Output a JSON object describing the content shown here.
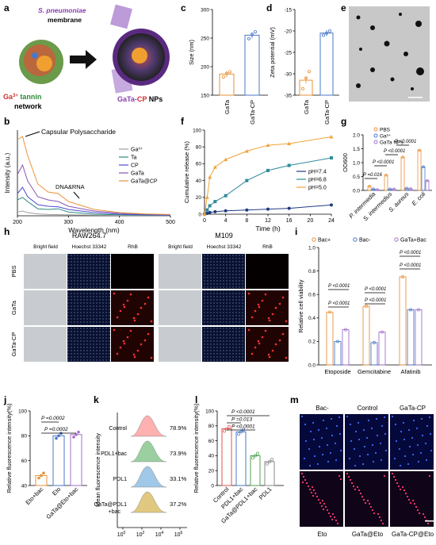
{
  "panel_letters": [
    "a",
    "b",
    "c",
    "d",
    "e",
    "f",
    "g",
    "h",
    "i",
    "j",
    "k",
    "l",
    "m"
  ],
  "panel_a": {
    "bacteria": "S. pneumoniae",
    "membrane": "membrane",
    "ga": "Ga",
    "sup": "3+",
    "tannin": " tannin",
    "network": "network",
    "np_prefix": "GaTa-",
    "np_cp": "CP",
    "np_suffix": " NPs"
  },
  "colors": {
    "gata": "#e8923a",
    "gatacp": "#4a78c8",
    "ga3": "#a0a0a0",
    "ta": "#2e8a80",
    "cp": "#4b4bd0",
    "gata_b": "#8a55b0",
    "gatacp_b": "#e8923a",
    "ph74": "#1f3b80",
    "ph68": "#2e8a9a",
    "ph50": "#f2a33a",
    "pbs": "#e8923a",
    "ga_g": "#4a78c8",
    "nps_g": "#a070c8",
    "bacplus": "#e8923a",
    "bacminus": "#4a78c8",
    "gatabac": "#a070c8"
  },
  "chart_data": [
    {
      "panel": "c",
      "type": "bar",
      "categories": [
        "GaTa",
        "GaTa-CP"
      ],
      "values": [
        187,
        255
      ],
      "points": [
        [
          182,
          188,
          191
        ],
        [
          249,
          256,
          261
        ]
      ],
      "ylabel": "Size (nm)",
      "ylim": [
        150,
        300
      ],
      "yticks": [
        150,
        200,
        250,
        300
      ]
    },
    {
      "panel": "d",
      "type": "bar",
      "categories": [
        "GaTa",
        "GaTa-CP"
      ],
      "values": [
        -31.5,
        -20.5
      ],
      "points": [
        [
          -33.5,
          -31,
          -29.5
        ],
        [
          -21,
          -20.5,
          -20
        ]
      ],
      "ylabel": "Zeta potential (mV)",
      "ylim": [
        -35,
        -15
      ],
      "yticks": [
        -35,
        -30,
        -25,
        -20,
        -15
      ]
    },
    {
      "panel": "b",
      "type": "line",
      "xlabel": "Wavelength (nm)",
      "ylabel": "Intensity (a.u.)",
      "xlim": [
        200,
        500
      ],
      "xticks": [
        200,
        300,
        400,
        500
      ],
      "series": [
        {
          "name": "Ga³⁺",
          "x": [
            200,
            210,
            220,
            240,
            260,
            300,
            350,
            400,
            450,
            500
          ],
          "y": [
            0.12,
            0.15,
            0.1,
            0.06,
            0.04,
            0.03,
            0.02,
            0.01,
            0.01,
            0.01
          ]
        },
        {
          "name": "Ta",
          "x": [
            200,
            210,
            220,
            240,
            260,
            280,
            300,
            350,
            400,
            450,
            500
          ],
          "y": [
            0.5,
            0.58,
            0.45,
            0.22,
            0.2,
            0.22,
            0.12,
            0.05,
            0.03,
            0.02,
            0.02
          ]
        },
        {
          "name": "CP",
          "x": [
            200,
            210,
            220,
            240,
            260,
            280,
            300,
            350,
            400,
            450,
            500
          ],
          "y": [
            0.7,
            0.9,
            0.6,
            0.35,
            0.3,
            0.28,
            0.2,
            0.1,
            0.05,
            0.03,
            0.02
          ]
        },
        {
          "name": "GaTa",
          "x": [
            200,
            210,
            220,
            240,
            260,
            280,
            300,
            350,
            400,
            450,
            500
          ],
          "y": [
            1.3,
            1.6,
            1.1,
            0.6,
            0.5,
            0.45,
            0.3,
            0.15,
            0.08,
            0.05,
            0.03
          ]
        },
        {
          "name": "GaTa@CP",
          "x": [
            200,
            210,
            220,
            240,
            260,
            280,
            300,
            350,
            400,
            450,
            500
          ],
          "y": [
            2.4,
            2.5,
            1.9,
            1.0,
            0.75,
            0.7,
            0.45,
            0.2,
            0.1,
            0.06,
            0.04
          ]
        }
      ],
      "annotations": [
        "Capsular Polysaccharide",
        "DNA&RNA"
      ]
    },
    {
      "panel": "f",
      "type": "line",
      "xlabel": "Time (h)",
      "ylabel": "Cumulative release (%)",
      "xlim": [
        0,
        24
      ],
      "xticks": [
        0,
        4,
        8,
        12,
        16,
        20,
        24
      ],
      "ylim": [
        0,
        100
      ],
      "yticks": [
        0,
        20,
        40,
        60,
        80,
        100
      ],
      "series": [
        {
          "name": "pH=7.4",
          "x": [
            0,
            0.5,
            1,
            2,
            4,
            8,
            12,
            16,
            24
          ],
          "y": [
            0,
            1,
            2,
            3,
            4,
            5,
            6,
            7,
            11
          ]
        },
        {
          "name": "pH=6.8",
          "x": [
            0,
            0.5,
            1,
            2,
            4,
            8,
            12,
            16,
            24
          ],
          "y": [
            0,
            5,
            10,
            15,
            22,
            40,
            52,
            58,
            67
          ]
        },
        {
          "name": "pH=5.0",
          "x": [
            0,
            0.5,
            1,
            2,
            4,
            8,
            12,
            16,
            24
          ],
          "y": [
            0,
            20,
            44,
            56,
            65,
            75,
            82,
            84,
            92
          ]
        }
      ]
    },
    {
      "panel": "g",
      "type": "bar",
      "categories": [
        "P. intermedia",
        "S. intermedius",
        "S. aureus",
        "E. coli"
      ],
      "series": [
        {
          "name": "PBS",
          "values": [
            0.15,
            0.55,
            1.2,
            1.45
          ]
        },
        {
          "name": "Ga³⁺",
          "values": [
            0.05,
            0.05,
            0.08,
            0.85
          ]
        },
        {
          "name": "GaTa NPs",
          "values": [
            0.03,
            0.05,
            0.06,
            0.35
          ]
        }
      ],
      "ylabel": "OD600",
      "ylim": [
        0,
        2.0
      ],
      "yticks": [
        0,
        0.5,
        1.0,
        1.5,
        2.0
      ],
      "pvalues": [
        "P =0.016",
        "P <0.0001",
        "P <0.0001",
        "P <0.0001"
      ]
    },
    {
      "panel": "i",
      "type": "bar",
      "categories": [
        "Etoposide",
        "Gemcitabine",
        "Afatinib"
      ],
      "series": [
        {
          "name": "Bac+",
          "values": [
            0.45,
            0.5,
            0.75
          ]
        },
        {
          "name": "Bac-",
          "values": [
            0.2,
            0.19,
            0.47
          ]
        },
        {
          "name": "GaTa+Bac",
          "values": [
            0.3,
            0.28,
            0.47
          ]
        }
      ],
      "ylabel": "Relative cell viability",
      "ylim": [
        0,
        1.0
      ],
      "yticks": [
        0,
        0.2,
        0.4,
        0.6,
        0.8,
        1.0
      ],
      "pvalues": [
        "P <0.0001",
        "P <0.0001",
        "P <0.0001",
        "P <0.0001",
        "P <0.0001",
        "P <0.0001"
      ]
    },
    {
      "panel": "j",
      "type": "bar",
      "categories": [
        "Eto+bac",
        "Eto",
        "GaTa@Eto+bac"
      ],
      "values": [
        48,
        80,
        81
      ],
      "ylabel": "Relative fluorescence intensity(%)",
      "ylim": [
        40,
        100
      ],
      "yticks": [
        40,
        60,
        80,
        100
      ],
      "pvalues": [
        "P =0.0002",
        "P =0.0002"
      ]
    },
    {
      "panel": "k",
      "type": "histogram",
      "ylabel": "Mean fluorescence intensity",
      "xticks_major": [
        "10",
        "10",
        "10",
        "10"
      ],
      "xticks_sup": [
        "0",
        "2",
        "4",
        "6"
      ],
      "rows": [
        {
          "label": "Control",
          "value": "78.9%"
        },
        {
          "label": "PDL1+bac",
          "value": "73.9%"
        },
        {
          "label": "PDL1",
          "value": "33.1%"
        },
        {
          "label": "GaTa@PDL1\n+bac",
          "value": "37.2%"
        }
      ]
    },
    {
      "panel": "l",
      "type": "bar",
      "categories": [
        "Control",
        "PDL1+bac",
        "GaTa@PDL1+bac",
        "PDL1"
      ],
      "values": [
        76,
        72,
        40,
        32
      ],
      "ylabel": "Relative fluorescence intensity(%)",
      "ylim": [
        0,
        100
      ],
      "yticks": [
        0,
        20,
        40,
        60,
        80,
        100
      ],
      "pvalues": [
        "P <0.0001",
        "P =0.013",
        "P <0.0001"
      ]
    }
  ],
  "panel_h": {
    "groups": [
      "RAW264.7",
      "M109"
    ],
    "columns": [
      "Bright field",
      "Hoechst 33342",
      "RhB"
    ],
    "rows": [
      "PBS",
      "GaTa",
      "GaTa-CP"
    ]
  },
  "panel_m": {
    "top": [
      "Bac-",
      "Control",
      "GaTa-CP"
    ],
    "bottom": [
      "Eto",
      "GaTa@Eto",
      "GaTa-CP@Eto"
    ]
  }
}
